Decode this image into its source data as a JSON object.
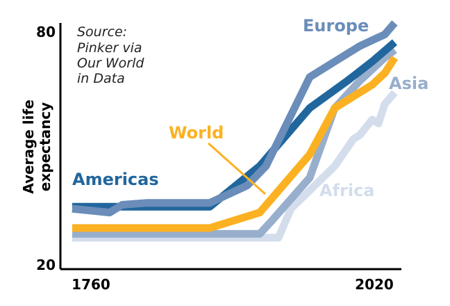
{
  "chart_data": {
    "type": "line",
    "ylabel": [
      "Average life",
      "expectancy"
    ],
    "source_lines": [
      "Source:",
      "Pinker via",
      "Our World",
      "in Data"
    ],
    "x_ticks": [
      "1760",
      "2020"
    ],
    "y_ticks": [
      "80",
      "20"
    ],
    "xlim": [
      1760,
      2020
    ],
    "ylim": [
      20,
      80
    ],
    "grid": false,
    "series": [
      {
        "name": "Africa",
        "color": "#d3ddec",
        "points": [
          [
            1760,
            26.5
          ],
          [
            1830,
            26.5
          ],
          [
            1880,
            26.5
          ],
          [
            1925,
            26.5
          ],
          [
            1935,
            34
          ],
          [
            1970,
            45
          ],
          [
            1985,
            52
          ],
          [
            1990,
            53
          ],
          [
            2000,
            57
          ],
          [
            2005,
            56
          ],
          [
            2010,
            61
          ],
          [
            2018,
            64
          ]
        ]
      },
      {
        "name": "Asia",
        "color": "#97aecc",
        "points": [
          [
            1760,
            27.5
          ],
          [
            1830,
            27.5
          ],
          [
            1880,
            27.5
          ],
          [
            1910,
            27.5
          ],
          [
            1920,
            31
          ],
          [
            1950,
            42
          ],
          [
            1970,
            60
          ],
          [
            1990,
            67
          ],
          [
            2000,
            70
          ],
          [
            2010,
            73
          ],
          [
            2018,
            75
          ]
        ]
      },
      {
        "name": "World",
        "color": "#fbb121",
        "points": [
          [
            1760,
            29
          ],
          [
            1870,
            29
          ],
          [
            1910,
            33
          ],
          [
            1950,
            48
          ],
          [
            1970,
            60
          ],
          [
            2000,
            66
          ],
          [
            2010,
            69
          ],
          [
            2018,
            73
          ]
        ]
      },
      {
        "name": "Americas",
        "color": "#21669d",
        "points": [
          [
            1760,
            34.5
          ],
          [
            1870,
            34.5
          ],
          [
            1910,
            45
          ],
          [
            1950,
            60
          ],
          [
            1980,
            67
          ],
          [
            2000,
            72
          ],
          [
            2018,
            77
          ]
        ]
      },
      {
        "name": "Europe",
        "color": "#6a8dba",
        "points": [
          [
            1760,
            34
          ],
          [
            1790,
            33
          ],
          [
            1800,
            35
          ],
          [
            1820,
            35.5
          ],
          [
            1870,
            35.5
          ],
          [
            1900,
            40
          ],
          [
            1915,
            45
          ],
          [
            1950,
            68
          ],
          [
            1970,
            72
          ],
          [
            1990,
            76
          ],
          [
            2000,
            77.5
          ],
          [
            2010,
            79
          ],
          [
            2018,
            82
          ]
        ]
      }
    ],
    "labels": [
      {
        "series": "Europe",
        "text": "Europe"
      },
      {
        "series": "Asia",
        "text": "Asia"
      },
      {
        "series": "World",
        "text": "World"
      },
      {
        "series": "Americas",
        "text": "Americas"
      },
      {
        "series": "Africa",
        "text": "Africa"
      }
    ]
  }
}
